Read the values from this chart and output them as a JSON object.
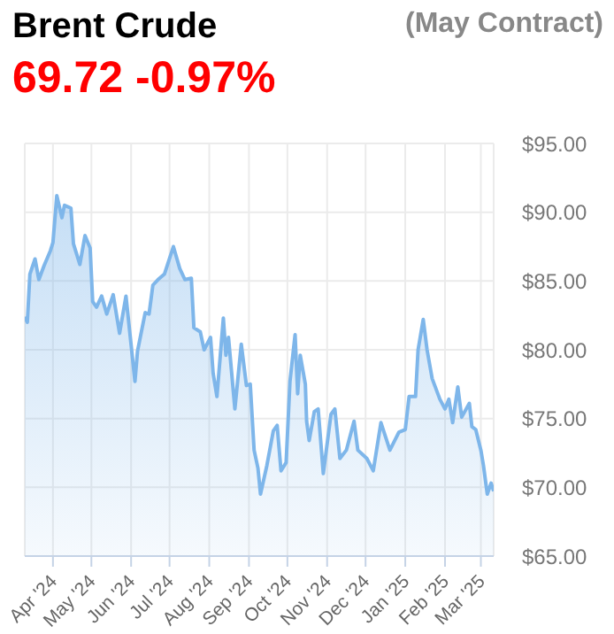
{
  "chart_data": {
    "type": "area",
    "title": "Brent Crude",
    "subtitle": "(May Contract)",
    "annotations": [
      "69.72 -0.97%"
    ],
    "series": [
      {
        "color": "#7eb6ea",
        "x": [
          "2024-03-10",
          "2024-03-12",
          "2024-03-14",
          "2024-03-18",
          "2024-03-21",
          "2024-03-25",
          "2024-03-30",
          "2024-04-01",
          "2024-04-04",
          "2024-04-08",
          "2024-04-10",
          "2024-04-15",
          "2024-04-17",
          "2024-04-22",
          "2024-04-26",
          "2024-04-30",
          "2024-05-02",
          "2024-05-05",
          "2024-05-09",
          "2024-05-13",
          "2024-05-18",
          "2024-05-23",
          "2024-05-28",
          "2024-06-04",
          "2024-06-06",
          "2024-06-12",
          "2024-06-15",
          "2024-06-18",
          "2024-06-22",
          "2024-06-27",
          "2024-07-04",
          "2024-07-09",
          "2024-07-13",
          "2024-07-18",
          "2024-07-20",
          "2024-07-25",
          "2024-07-28",
          "2024-08-02",
          "2024-08-04",
          "2024-08-07",
          "2024-08-12",
          "2024-08-14",
          "2024-08-16",
          "2024-08-21",
          "2024-08-26",
          "2024-08-30",
          "2024-09-02",
          "2024-09-05",
          "2024-09-08",
          "2024-09-10",
          "2024-09-15",
          "2024-09-20",
          "2024-09-23",
          "2024-09-26",
          "2024-09-30",
          "2024-10-03",
          "2024-10-07",
          "2024-10-09",
          "2024-10-11",
          "2024-10-15",
          "2024-10-16",
          "2024-10-18",
          "2024-10-22",
          "2024-10-25",
          "2024-10-29",
          "2024-11-04",
          "2024-11-07",
          "2024-11-11",
          "2024-11-16",
          "2024-11-22",
          "2024-11-25",
          "2024-12-02",
          "2024-12-07",
          "2024-12-13",
          "2024-12-20",
          "2024-12-27",
          "2025-01-01",
          "2025-01-04",
          "2025-01-09",
          "2025-01-11",
          "2025-01-15",
          "2025-01-18",
          "2025-01-22",
          "2025-01-28",
          "2025-02-01",
          "2025-02-04",
          "2025-02-07",
          "2025-02-11",
          "2025-02-14",
          "2025-02-20",
          "2025-02-22",
          "2025-02-25",
          "2025-03-01",
          "2025-03-03",
          "2025-03-06",
          "2025-03-09",
          "2025-03-11"
        ],
        "values": [
          82.4,
          82.0,
          85.5,
          86.6,
          85.1,
          86.1,
          87.2,
          87.8,
          91.2,
          89.6,
          90.5,
          90.3,
          87.7,
          86.2,
          88.3,
          87.4,
          83.5,
          83.1,
          83.9,
          82.6,
          84.0,
          81.2,
          83.9,
          77.7,
          79.9,
          82.7,
          82.6,
          84.7,
          85.1,
          85.5,
          87.5,
          85.9,
          85.1,
          85.2,
          81.6,
          81.3,
          80.0,
          80.9,
          78.3,
          76.6,
          82.3,
          79.6,
          80.9,
          75.7,
          80.4,
          77.4,
          77.5,
          72.7,
          71.4,
          69.5,
          71.6,
          74.1,
          74.5,
          71.2,
          71.8,
          77.7,
          81.1,
          76.8,
          79.6,
          77.5,
          74.8,
          73.4,
          75.5,
          75.7,
          71.0,
          75.3,
          75.7,
          72.1,
          72.7,
          74.8,
          72.7,
          72.1,
          71.2,
          74.7,
          72.7,
          74.0,
          74.2,
          76.6,
          76.6,
          80.0,
          82.2,
          80.0,
          77.9,
          76.4,
          75.7,
          76.4,
          74.7,
          77.3,
          75.1,
          76.1,
          74.4,
          74.2,
          72.7,
          71.6,
          69.5,
          70.3,
          69.72
        ]
      }
    ],
    "xlim": [
      "2024-03-10",
      "2025-03-11"
    ],
    "xticks": [
      {
        "value": "2024-04-01",
        "label": "Apr '24"
      },
      {
        "value": "2024-05-01",
        "label": "May '24"
      },
      {
        "value": "2024-06-01",
        "label": "Jun '24"
      },
      {
        "value": "2024-07-01",
        "label": "Jul '24"
      },
      {
        "value": "2024-08-01",
        "label": "Aug '24"
      },
      {
        "value": "2024-09-01",
        "label": "Sep '24"
      },
      {
        "value": "2024-10-01",
        "label": "Oct '24"
      },
      {
        "value": "2024-11-01",
        "label": "Nov '24"
      },
      {
        "value": "2024-12-01",
        "label": "Dec '24"
      },
      {
        "value": "2025-01-01",
        "label": "Jan '25"
      },
      {
        "value": "2025-02-01",
        "label": "Feb '25"
      },
      {
        "value": "2025-03-01",
        "label": "Mar '25"
      }
    ],
    "ylim": [
      65,
      95
    ],
    "yticks": [
      {
        "value": 65,
        "label": "$65.00"
      },
      {
        "value": 70,
        "label": "$70.00"
      },
      {
        "value": 75,
        "label": "$75.00"
      },
      {
        "value": 80,
        "label": "$80.00"
      },
      {
        "value": 85,
        "label": "$85.00"
      },
      {
        "value": 90,
        "label": "$90.00"
      },
      {
        "value": 95,
        "label": "$95.00"
      }
    ],
    "grid": true
  }
}
